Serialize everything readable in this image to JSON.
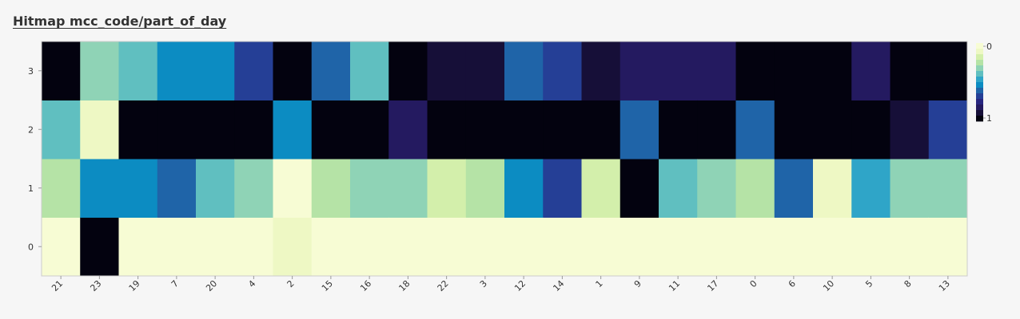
{
  "title": "Hitmap mcc_code/part_of_day",
  "chart_data": {
    "type": "heatmap",
    "title": "Hitmap mcc_code/part_of_day",
    "xlabel": "",
    "ylabel": "",
    "x_categories": [
      "21",
      "23",
      "19",
      "7",
      "20",
      "4",
      "2",
      "15",
      "16",
      "18",
      "22",
      "3",
      "12",
      "14",
      "1",
      "9",
      "11",
      "17",
      "0",
      "6",
      "10",
      "5",
      "8",
      "13"
    ],
    "y_categories": [
      "0",
      "1",
      "2",
      "3"
    ],
    "values": [
      [
        0.02,
        0.22,
        0.35,
        1.0
      ],
      [
        1.0,
        0.53,
        0.04,
        0.3
      ],
      [
        0.02,
        0.55,
        1.0,
        0.35
      ],
      [
        0.02,
        0.6,
        1.0,
        0.55
      ],
      [
        0.02,
        0.35,
        1.0,
        0.55
      ],
      [
        0.02,
        0.3,
        1.0,
        0.68
      ],
      [
        0.08,
        0.03,
        0.55,
        1.0
      ],
      [
        0.02,
        0.2,
        1.0,
        0.6
      ],
      [
        0.02,
        0.28,
        1.0,
        0.35
      ],
      [
        0.02,
        0.3,
        0.86,
        1.0
      ],
      [
        0.02,
        0.17,
        1.0,
        0.9
      ],
      [
        0.02,
        0.25,
        1.0,
        0.95
      ],
      [
        0.02,
        0.55,
        1.0,
        0.6
      ],
      [
        0.02,
        0.68,
        1.0,
        0.73
      ],
      [
        0.02,
        0.18,
        1.0,
        0.96
      ],
      [
        0.02,
        1.0,
        0.6,
        0.82
      ],
      [
        0.02,
        0.38,
        1.0,
        0.88
      ],
      [
        0.02,
        0.27,
        1.0,
        0.82
      ],
      [
        0.02,
        0.2,
        0.6,
        1.0
      ],
      [
        0.02,
        0.65,
        1.0,
        1.0
      ],
      [
        0.02,
        0.1,
        0.97,
        1.0
      ],
      [
        0.02,
        0.45,
        1.0,
        0.87
      ],
      [
        0.02,
        0.3,
        0.92,
        1.0
      ],
      [
        0.02,
        0.3,
        0.7,
        1.0
      ]
    ],
    "value_range": [
      0,
      1
    ],
    "colorscale": [
      "#f7fcd4",
      "#eef8c4",
      "#d3efab",
      "#b5e3a6",
      "#8fd3b6",
      "#60bfc0",
      "#2fa5c8",
      "#0c8cc2",
      "#1f64a8",
      "#253f96",
      "#282680",
      "#241a60",
      "#160f38",
      "#03020f"
    ],
    "colorbar_ticks": [
      "0",
      "1"
    ],
    "grid": false
  }
}
